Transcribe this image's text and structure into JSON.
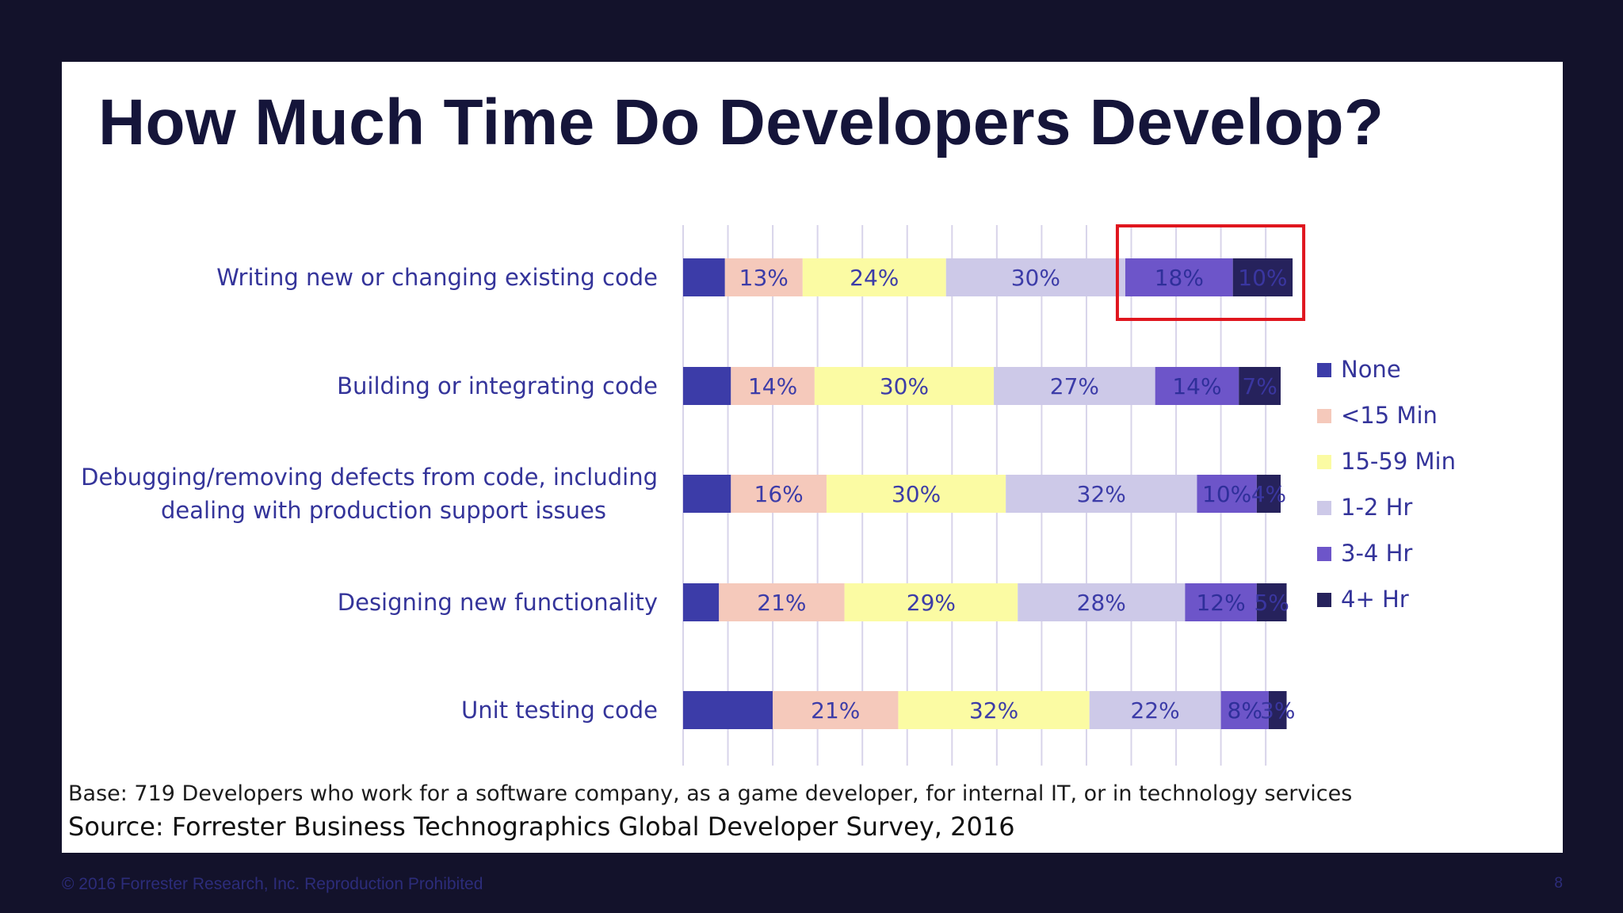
{
  "slide": {
    "title": "How Much Time Do Developers Develop?",
    "base_note": "Base: 719 Developers who work for a software company, as a game developer, for internal IT, or in technology services",
    "source_note": "Source: Forrester Business Technographics Global Developer Survey, 2016"
  },
  "footer": {
    "copyright": "© 2016 Forrester Research, Inc. Reproduction Prohibited",
    "page_number": "8"
  },
  "chart_data": {
    "type": "bar",
    "orientation": "horizontal",
    "stacked": true,
    "percent_stacked": true,
    "xlim": [
      0,
      100
    ],
    "grid": true,
    "legend_position": "right",
    "categories": [
      [
        "Writing new or changing existing code"
      ],
      [
        "Building or integrating code"
      ],
      [
        "Debugging/removing defects from code, including",
        "dealing with production support issues"
      ],
      [
        "Designing new functionality"
      ],
      [
        "Unit testing code"
      ]
    ],
    "series": [
      {
        "name": "None",
        "color": "#3c3ca8",
        "label_color": "#3c3ca8",
        "values": [
          7,
          8,
          8,
          6,
          15
        ]
      },
      {
        "name": "<15 Min",
        "color": "#f5c9bb",
        "label_color": "#3c3ca8",
        "values": [
          13,
          14,
          16,
          21,
          21
        ]
      },
      {
        "name": "15-59 Min",
        "color": "#fbfba3",
        "label_color": "#3c3ca8",
        "values": [
          24,
          30,
          30,
          29,
          32
        ]
      },
      {
        "name": "1-2 Hr",
        "color": "#cdc9e8",
        "label_color": "#3c3ca8",
        "values": [
          30,
          27,
          32,
          28,
          22
        ]
      },
      {
        "name": "3-4 Hr",
        "color": "#6d55c9",
        "label_color": "#2f2f9a",
        "values": [
          18,
          14,
          10,
          12,
          8
        ]
      },
      {
        "name": "4+ Hr",
        "color": "#26225c",
        "label_color": "#3a36a0",
        "values": [
          10,
          7,
          4,
          5,
          3
        ]
      }
    ],
    "data_labels": [
      [
        "",
        "13%",
        "24%",
        "30%",
        "18%",
        "10%"
      ],
      [
        "",
        "14%",
        "30%",
        "27%",
        "14%",
        "7%"
      ],
      [
        "",
        "16%",
        "30%",
        "32%",
        "10%",
        "4%"
      ],
      [
        "",
        "21%",
        "29%",
        "28%",
        "12%",
        "5%"
      ],
      [
        "",
        "21%",
        "32%",
        "22%",
        "8%",
        "3%"
      ]
    ],
    "highlight": {
      "category_index": 0,
      "series": [
        "3-4 Hr",
        "4+ Hr"
      ],
      "color": "#e0161e"
    }
  }
}
